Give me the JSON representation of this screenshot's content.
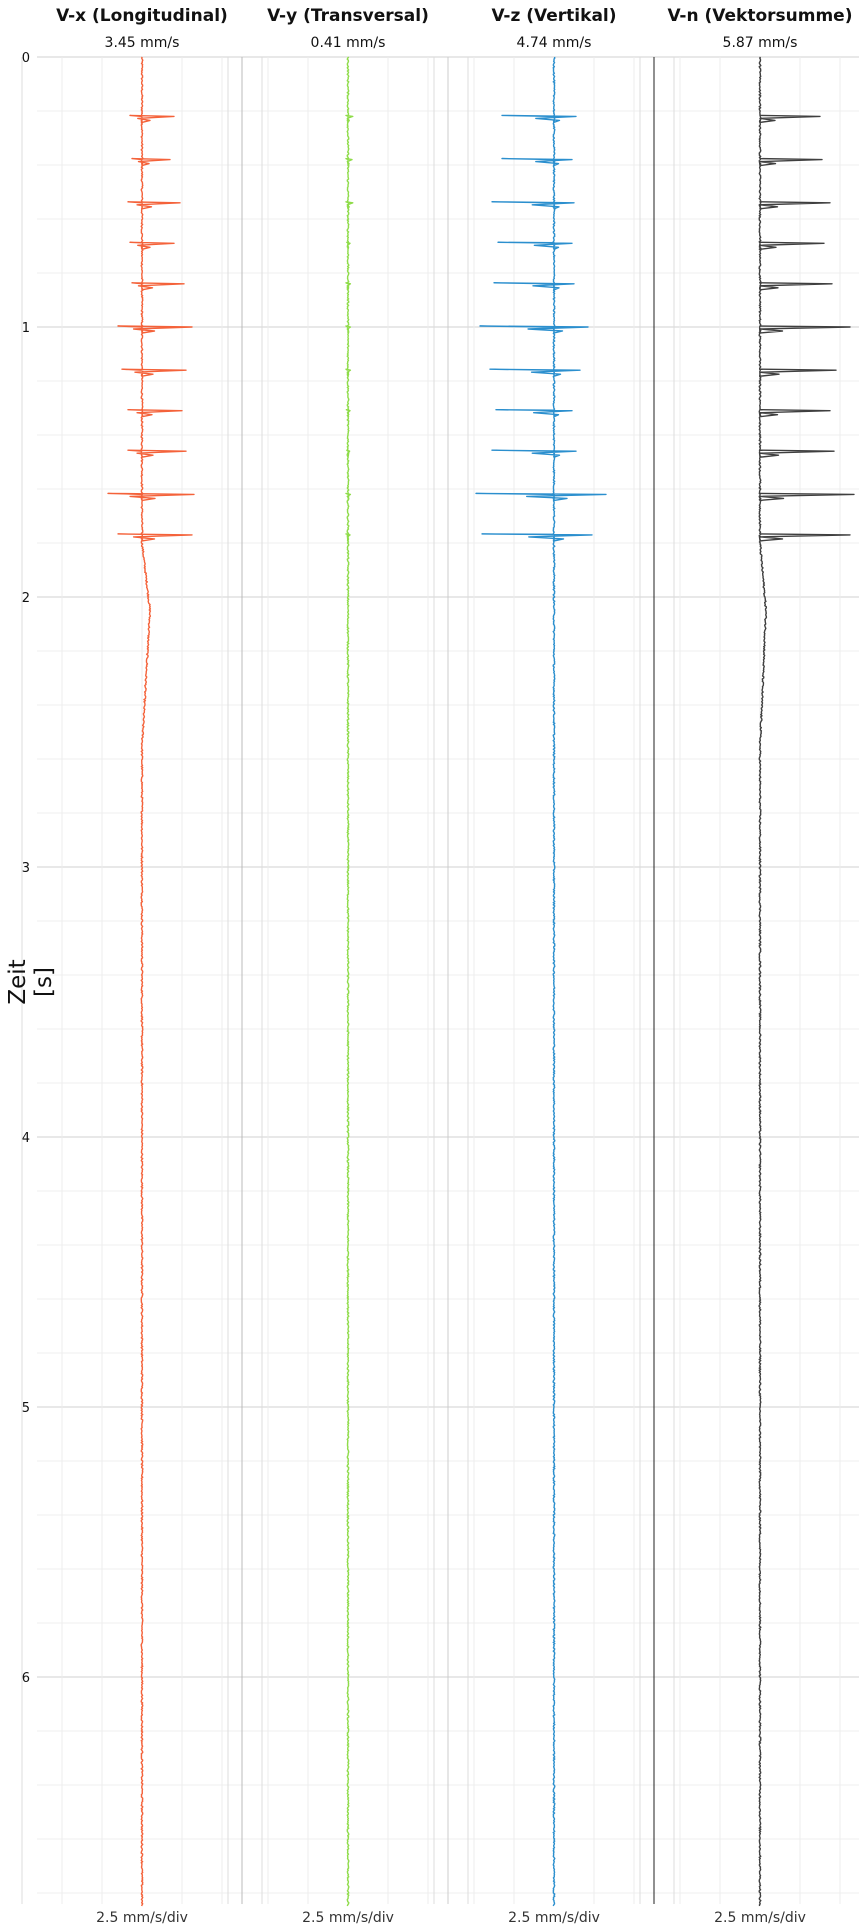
{
  "chart_data": {
    "type": "line",
    "ylabel": "Zeit [s]",
    "y_ticks": [
      "0",
      "1",
      "2",
      "3",
      "4",
      "5",
      "6"
    ],
    "ylim": [
      0,
      6.85
    ],
    "y_inverted": true,
    "grid": true,
    "panels": [
      {
        "title": "V-x (Longitudinal)",
        "peak": "3.45 mm/s",
        "scale": "2.5 mm/s/div",
        "color": "#f4623a",
        "spikes": [
          {
            "t": 0.22,
            "left": 0.3,
            "right": 0.8
          },
          {
            "t": 0.38,
            "left": 0.25,
            "right": 0.7
          },
          {
            "t": 0.54,
            "left": 0.35,
            "right": 0.95
          },
          {
            "t": 0.69,
            "left": 0.3,
            "right": 0.8
          },
          {
            "t": 0.84,
            "left": 0.25,
            "right": 1.05
          },
          {
            "t": 1.0,
            "left": 0.6,
            "right": 1.25
          },
          {
            "t": 1.16,
            "left": 0.5,
            "right": 1.1
          },
          {
            "t": 1.31,
            "left": 0.35,
            "right": 1.0
          },
          {
            "t": 1.46,
            "left": 0.35,
            "right": 1.1
          },
          {
            "t": 1.62,
            "left": 0.85,
            "right": 1.3
          },
          {
            "t": 1.77,
            "left": 0.6,
            "right": 1.25
          }
        ],
        "drift": {
          "start": 1.8,
          "peak_t": 2.05,
          "end": 2.55,
          "value": 0.2
        }
      },
      {
        "title": "V-y (Transversal)",
        "peak": "0.41 mm/s",
        "scale": "2.5 mm/s/div",
        "color": "#8fdc4a",
        "spikes": [
          {
            "t": 0.22,
            "left": 0.05,
            "right": 0.12
          },
          {
            "t": 0.38,
            "left": 0.05,
            "right": 0.1
          },
          {
            "t": 0.54,
            "left": 0.05,
            "right": 0.12
          },
          {
            "t": 0.69,
            "left": 0.03,
            "right": 0.05
          },
          {
            "t": 0.84,
            "left": 0.05,
            "right": 0.06
          },
          {
            "t": 1.0,
            "left": 0.05,
            "right": 0.06
          },
          {
            "t": 1.16,
            "left": 0.05,
            "right": 0.06
          },
          {
            "t": 1.31,
            "left": 0.04,
            "right": 0.05
          },
          {
            "t": 1.46,
            "left": 0.03,
            "right": 0.04
          },
          {
            "t": 1.62,
            "left": 0.05,
            "right": 0.06
          },
          {
            "t": 1.77,
            "left": 0.05,
            "right": 0.05
          }
        ],
        "drift": {
          "start": 1.8,
          "peak_t": 2.05,
          "end": 2.55,
          "value": 0.0
        }
      },
      {
        "title": "V-z (Vertikal)",
        "peak": "4.74 mm/s",
        "scale": "2.5 mm/s/div",
        "color": "#2b8fce",
        "spikes": [
          {
            "t": 0.22,
            "left": 1.3,
            "right": 0.55
          },
          {
            "t": 0.38,
            "left": 1.3,
            "right": 0.45
          },
          {
            "t": 0.54,
            "left": 1.55,
            "right": 0.5
          },
          {
            "t": 0.69,
            "left": 1.4,
            "right": 0.45
          },
          {
            "t": 0.84,
            "left": 1.5,
            "right": 0.5
          },
          {
            "t": 1.0,
            "left": 1.85,
            "right": 0.85
          },
          {
            "t": 1.16,
            "left": 1.6,
            "right": 0.65
          },
          {
            "t": 1.31,
            "left": 1.45,
            "right": 0.45
          },
          {
            "t": 1.46,
            "left": 1.55,
            "right": 0.55
          },
          {
            "t": 1.62,
            "left": 1.95,
            "right": 1.3
          },
          {
            "t": 1.77,
            "left": 1.8,
            "right": 0.95
          }
        ],
        "drift": {
          "start": 1.8,
          "peak_t": 2.05,
          "end": 2.55,
          "value": 0.0
        }
      },
      {
        "title": "V-n (Vektorsumme)",
        "peak": "5.87 mm/s",
        "scale": "2.5 mm/s/div",
        "color": "#3f3f3f",
        "spikes": [
          {
            "t": 0.22,
            "left": 0.0,
            "right": 1.5
          },
          {
            "t": 0.38,
            "left": 0.0,
            "right": 1.55
          },
          {
            "t": 0.54,
            "left": 0.0,
            "right": 1.75
          },
          {
            "t": 0.69,
            "left": 0.0,
            "right": 1.6
          },
          {
            "t": 0.84,
            "left": 0.0,
            "right": 1.8
          },
          {
            "t": 1.0,
            "left": 0.0,
            "right": 2.25
          },
          {
            "t": 1.16,
            "left": 0.0,
            "right": 1.9
          },
          {
            "t": 1.31,
            "left": 0.0,
            "right": 1.75
          },
          {
            "t": 1.46,
            "left": 0.0,
            "right": 1.85
          },
          {
            "t": 1.62,
            "left": 0.0,
            "right": 2.35
          },
          {
            "t": 1.77,
            "left": 0.0,
            "right": 2.25
          }
        ],
        "drift": {
          "start": 1.8,
          "peak_t": 2.05,
          "end": 2.55,
          "value": 0.15
        }
      }
    ]
  }
}
